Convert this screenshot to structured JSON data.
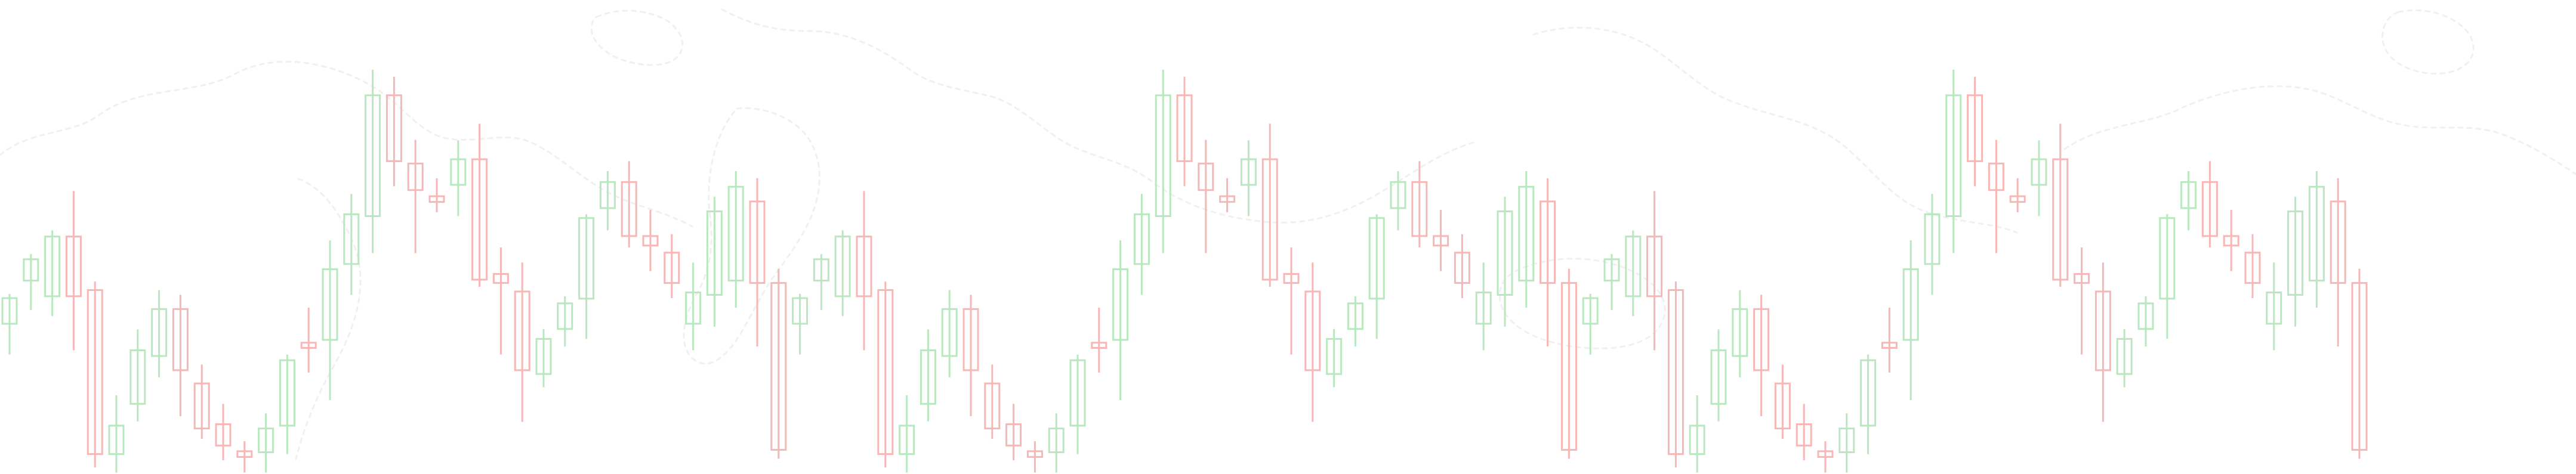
{
  "chart_data": {
    "type": "candlestick",
    "title": "",
    "xlabel": "",
    "ylabel": "",
    "grid": false,
    "legend": "none",
    "ylim": [
      0,
      100
    ],
    "colors": {
      "up": "#b9e7bf",
      "down": "#f6b7b6",
      "watermark": "#efefef",
      "background": "#ffffff"
    },
    "candles": [
      {
        "o": 31.7,
        "h": 38.0,
        "l": 25.2,
        "c": 37.1
      },
      {
        "o": 40.8,
        "h": 46.4,
        "l": 34.6,
        "c": 45.3
      },
      {
        "o": 37.5,
        "h": 51.4,
        "l": 33.3,
        "c": 50.1
      },
      {
        "o": 50.1,
        "h": 59.7,
        "l": 26.1,
        "c": 37.5
      },
      {
        "o": 38.8,
        "h": 40.6,
        "l": 1.4,
        "c": 4.2
      },
      {
        "o": 4.2,
        "h": 16.6,
        "l": 0.3,
        "c": 10.2
      },
      {
        "o": 14.8,
        "h": 30.5,
        "l": 11.1,
        "c": 26.1
      },
      {
        "o": 24.9,
        "h": 38.8,
        "l": 20.4,
        "c": 34.8
      },
      {
        "o": 34.8,
        "h": 37.8,
        "l": 12.2,
        "c": 21.9
      },
      {
        "o": 19.1,
        "h": 23.1,
        "l": 7.4,
        "c": 9.6
      },
      {
        "o": 10.5,
        "h": 14.8,
        "l": 2.9,
        "c": 6.0
      },
      {
        "o": 4.8,
        "h": 6.9,
        "l": 0.3,
        "c": 3.6
      },
      {
        "o": 4.6,
        "h": 12.8,
        "l": 0.3,
        "c": 9.6
      },
      {
        "o": 10.2,
        "h": 25.2,
        "l": 4.2,
        "c": 24.0
      },
      {
        "o": 27.7,
        "h": 35.1,
        "l": 21.4,
        "c": 26.6
      },
      {
        "o": 28.3,
        "h": 49.3,
        "l": 15.6,
        "c": 43.2
      },
      {
        "o": 44.3,
        "h": 59.1,
        "l": 37.8,
        "c": 54.8
      },
      {
        "o": 54.4,
        "h": 85.3,
        "l": 46.6,
        "c": 79.9
      },
      {
        "o": 79.9,
        "h": 83.8,
        "l": 60.7,
        "c": 66.0
      },
      {
        "o": 65.5,
        "h": 70.5,
        "l": 46.6,
        "c": 59.9
      },
      {
        "o": 58.6,
        "h": 62.4,
        "l": 55.2,
        "c": 57.4
      },
      {
        "o": 61.0,
        "h": 70.4,
        "l": 54.4,
        "c": 66.4
      },
      {
        "o": 66.4,
        "h": 73.9,
        "l": 39.5,
        "c": 41.0
      },
      {
        "o": 42.2,
        "h": 47.8,
        "l": 25.2,
        "c": 40.3
      },
      {
        "o": 38.5,
        "h": 44.6,
        "l": 11.0,
        "c": 21.9
      },
      {
        "o": 21.1,
        "h": 30.6,
        "l": 18.3,
        "c": 28.5
      },
      {
        "o": 30.6,
        "h": 37.5,
        "l": 26.9,
        "c": 36.0
      },
      {
        "o": 37.0,
        "h": 54.8,
        "l": 28.5,
        "c": 54.0
      },
      {
        "o": 56.1,
        "h": 63.9,
        "l": 51.4,
        "c": 61.6
      },
      {
        "o": 61.6,
        "h": 66.0,
        "l": 47.8,
        "c": 50.2
      },
      {
        "o": 50.2,
        "h": 55.7,
        "l": 42.8,
        "c": 48.2
      },
      {
        "o": 46.7,
        "h": 50.6,
        "l": 37.1,
        "c": 40.3
      },
      {
        "o": 31.7,
        "h": 44.6,
        "l": 26.1,
        "c": 38.3
      },
      {
        "o": 37.8,
        "h": 58.5,
        "l": 31.1,
        "c": 55.4
      },
      {
        "o": 40.8,
        "h": 63.9,
        "l": 35.1,
        "c": 60.6
      },
      {
        "o": 57.5,
        "h": 62.4,
        "l": 26.9,
        "c": 40.3
      },
      {
        "o": 40.3,
        "h": 43.3,
        "l": 3.2,
        "c": 5.1
      }
    ]
  }
}
